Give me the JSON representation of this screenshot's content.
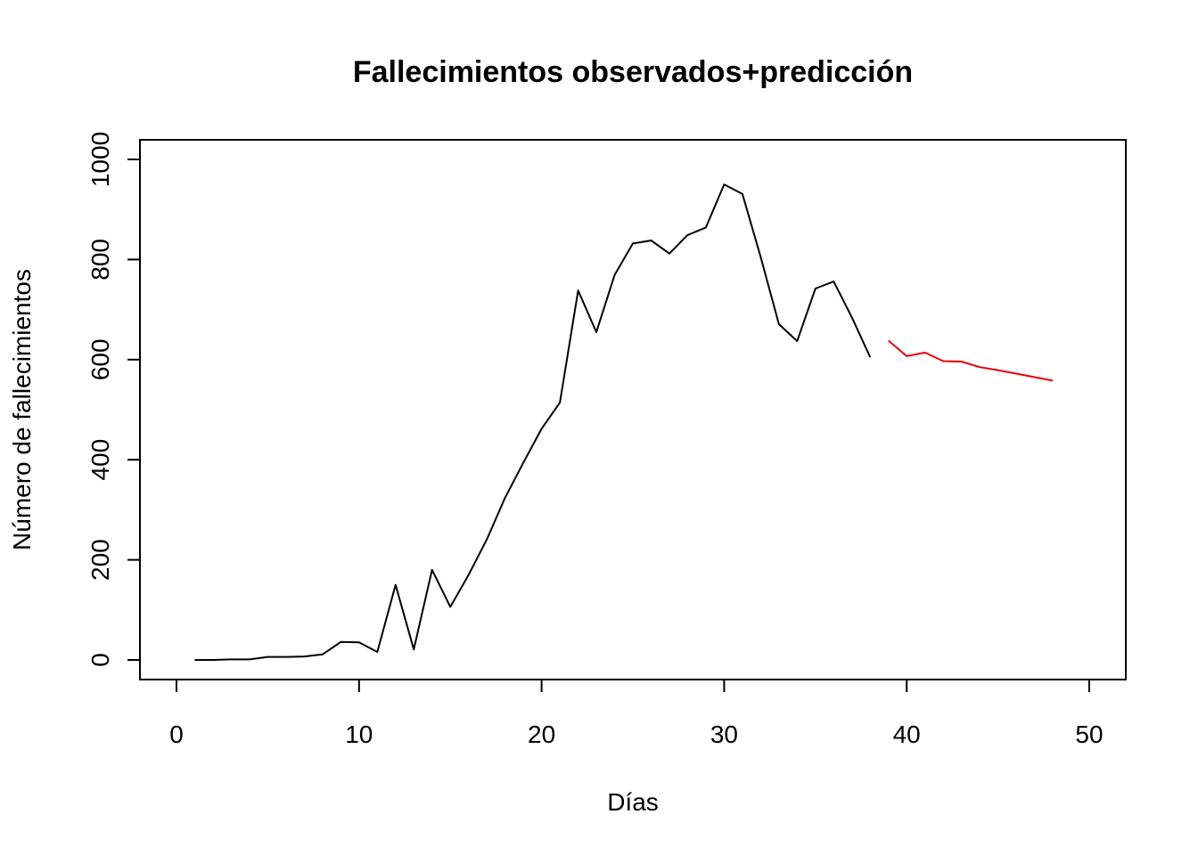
{
  "chart_data": {
    "type": "line",
    "title": "Fallecimientos observados+predicción",
    "xlabel": "Días",
    "ylabel": "Número de fallecimientos",
    "xlim": [
      0,
      50
    ],
    "ylim": [
      0,
      1000
    ],
    "x_ticks": [
      "0",
      "10",
      "20",
      "30",
      "40",
      "50"
    ],
    "y_ticks": [
      "0",
      "200",
      "400",
      "600",
      "800",
      "1000"
    ],
    "grid": false,
    "legend": "none",
    "series": [
      {
        "color": "#000000",
        "x": [
          1,
          2,
          3,
          4,
          5,
          6,
          7,
          8,
          9,
          10,
          11,
          12,
          13,
          14,
          15,
          16,
          17,
          18,
          19,
          20,
          21,
          22,
          23,
          24,
          25,
          26,
          27,
          28,
          29,
          30,
          31,
          32,
          33,
          34,
          35,
          36,
          37,
          38
        ],
        "y": [
          0,
          0,
          1,
          1,
          6,
          6,
          7,
          11,
          36,
          35,
          16,
          150,
          21,
          180,
          106,
          170,
          241,
          324,
          394,
          462,
          514,
          738,
          655,
          769,
          832,
          838,
          812,
          849,
          864,
          950,
          931,
          805,
          671,
          637,
          742,
          756,
          684,
          605
        ]
      },
      {
        "color": "#e8000b",
        "x": [
          39,
          40,
          41,
          42,
          43,
          44,
          45,
          46,
          47,
          48
        ],
        "y": [
          638,
          607,
          614,
          597,
          596,
          585,
          579,
          572,
          565,
          558
        ]
      }
    ]
  }
}
